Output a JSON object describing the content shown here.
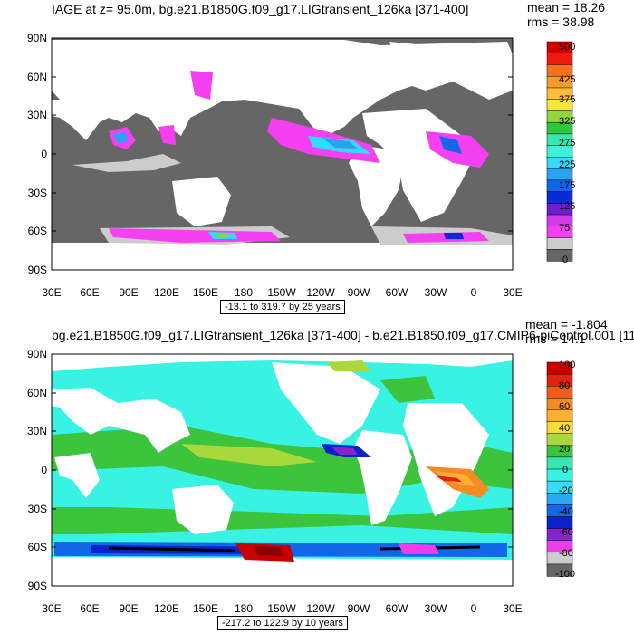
{
  "panel1": {
    "title": "IAGE at z=  95.0m, bg.e21.B1850G.f09_g17.LIGtransient_126ka [371-400]",
    "mean": "mean = 18.26",
    "rms": "rms = 38.98",
    "range": "-13.1 to 319.7 by 25 years",
    "lat_labels": [
      "90N",
      "60N",
      "30N",
      "0",
      "30S",
      "60S",
      "90S"
    ],
    "lon_labels": [
      "30E",
      "60E",
      "90E",
      "120E",
      "150E",
      "180",
      "150W",
      "120W",
      "90W",
      "60W",
      "30W",
      "0",
      "30E"
    ],
    "colorbar_labels": [
      "500",
      "425",
      "375",
      "325",
      "275",
      "225",
      "175",
      "125",
      "75",
      "0"
    ],
    "colorbar_colors": [
      "#d40000",
      "#ee1a10",
      "#f7701f",
      "#fa9a2b",
      "#fdbc3a",
      "#f8e43b",
      "#93d63c",
      "#2bc83a",
      "#3ae6b0",
      "#3cf2dc",
      "#38d8f7",
      "#2aa2f4",
      "#1266e8",
      "#0a2bd6",
      "#6e20c8",
      "#d43ae8",
      "#f440f0",
      "#cccccc",
      "#666666"
    ]
  },
  "panel2": {
    "title": "bg.e21.B1850G.f09_g17.LIGtransient_126ka [371-400] - b.e21.B1850.f09_g17.CMIP6-piControl.001 [11",
    "mean": "mean = -1.804",
    "rms": "rms = 14.1",
    "range": "-217.2 to 122.9 by 10 years",
    "lat_labels": [
      "90N",
      "60N",
      "30N",
      "0",
      "30S",
      "60S",
      "90S"
    ],
    "lon_labels": [
      "30E",
      "60E",
      "90E",
      "120E",
      "150E",
      "180",
      "150W",
      "120W",
      "90W",
      "60W",
      "30W",
      "0",
      "30E"
    ],
    "colorbar_labels": [
      "100",
      "80",
      "60",
      "40",
      "20",
      "0",
      "-20",
      "-40",
      "-60",
      "-80",
      "-100"
    ],
    "colorbar_colors": [
      "#c80000",
      "#e42010",
      "#f25c1c",
      "#f88a26",
      "#fbb033",
      "#f6dc3a",
      "#a8d83c",
      "#3cc43c",
      "#3ae6b0",
      "#38f2e4",
      "#38daf8",
      "#2aa8f4",
      "#1466e8",
      "#0a24cc",
      "#8a24c8",
      "#ee3cea",
      "#cccccc",
      "#666666"
    ]
  }
}
